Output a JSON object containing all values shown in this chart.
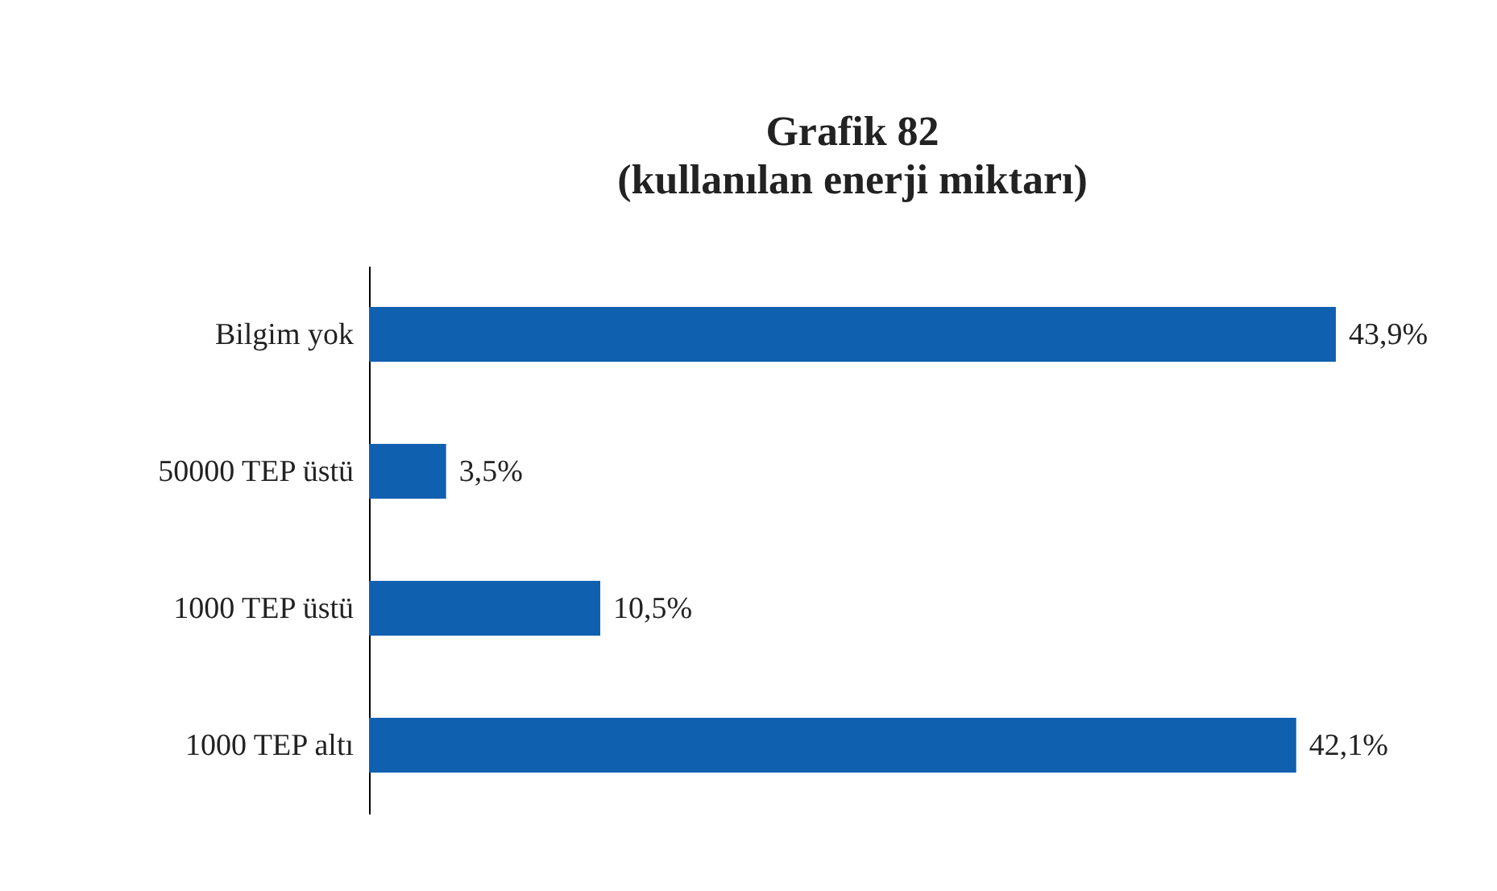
{
  "chart_data": {
    "type": "bar",
    "orientation": "horizontal",
    "title": "Grafik 82",
    "subtitle": "(kullanılan enerji miktarı)",
    "categories": [
      "Bilgim yok",
      "50000 TEP üstü",
      "1000 TEP üstü",
      "1000 TEP altı"
    ],
    "values": [
      43.9,
      3.5,
      10.5,
      42.1
    ],
    "color": "#1060b0",
    "value_labels": [
      "43,9%",
      "3,5%",
      "10,5%",
      "42,1%"
    ]
  }
}
